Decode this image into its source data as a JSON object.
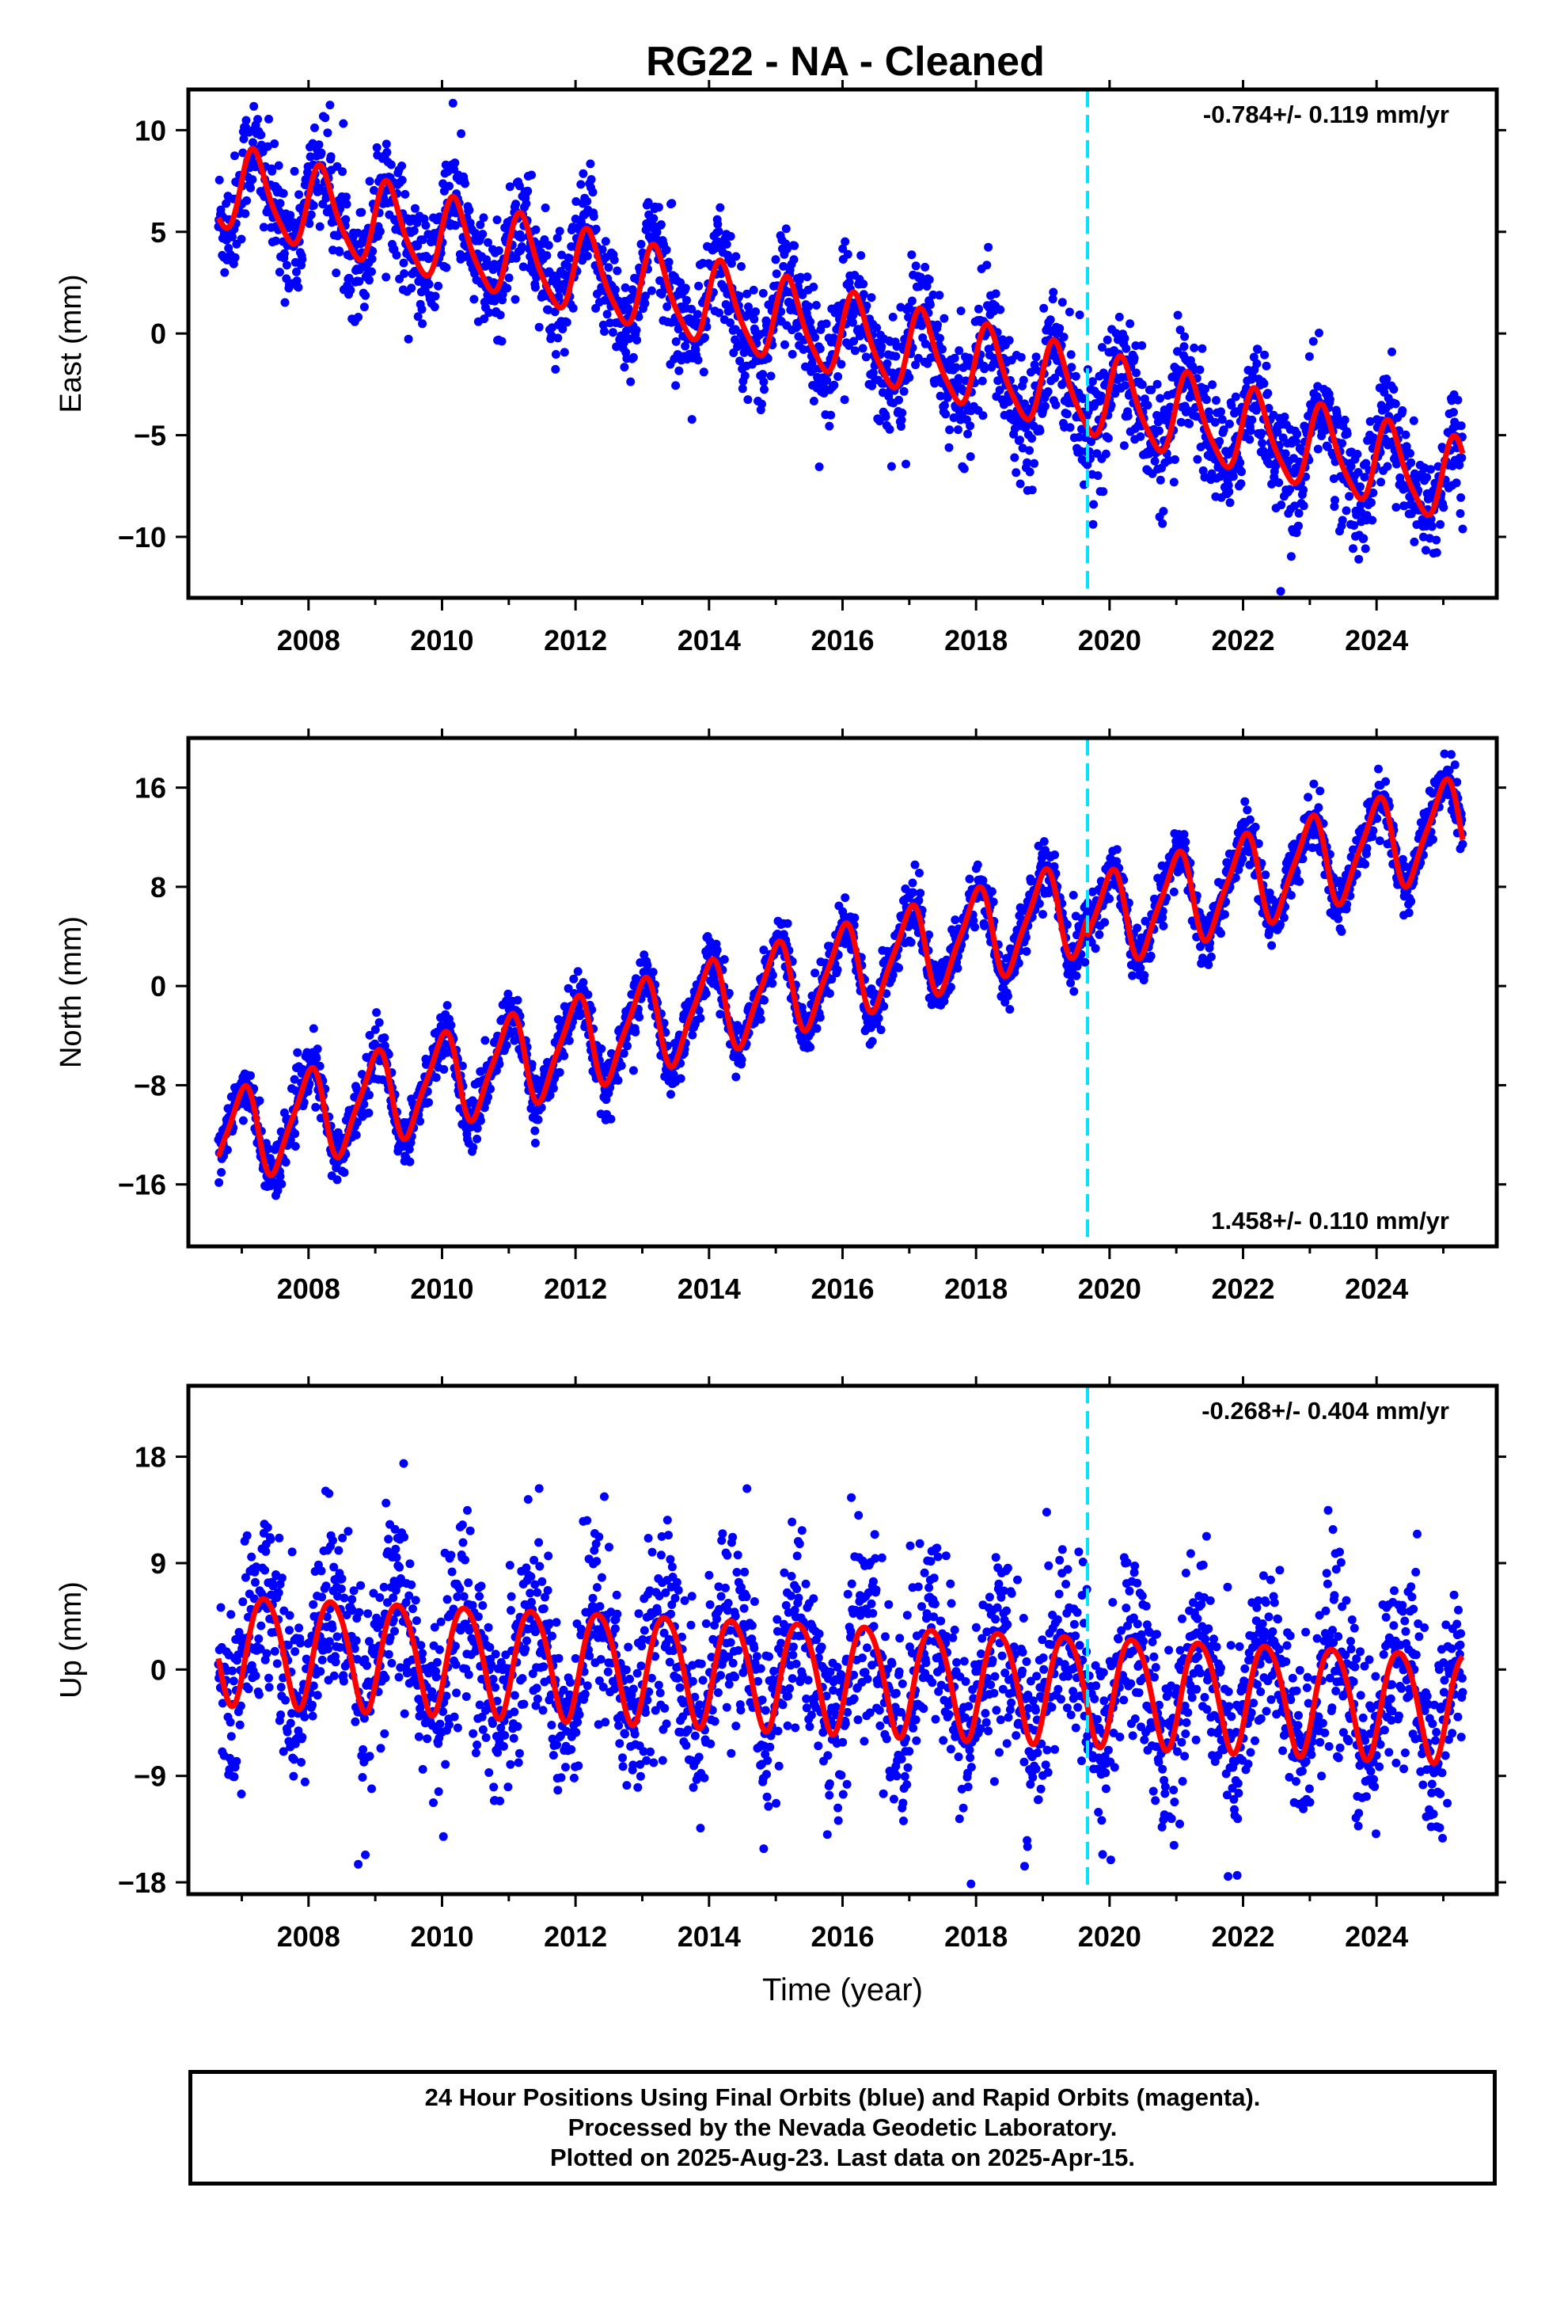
{
  "title": "RG22  - NA - Cleaned",
  "colors": {
    "data_points": "#0000ff",
    "model_fit": "#ff0000",
    "event_line": "#00e5ff",
    "frame": "#000000"
  },
  "chart_data": [
    {
      "type": "scatter",
      "ylabel": "East (mm)",
      "xlabel": "",
      "rate_label": "-0.784+/- 0.119 mm/yr",
      "xlim": [
        2006.2,
        2025.8
      ],
      "ylim": [
        -13,
        12
      ],
      "x_ticks": [
        2008,
        2010,
        2012,
        2014,
        2016,
        2018,
        2020,
        2022,
        2024
      ],
      "x_tick_labels": [
        "2008",
        "2010",
        "2012",
        "2014",
        "2016",
        "2018",
        "2020",
        "2022",
        "2024"
      ],
      "y_ticks": [
        -10,
        -5,
        0,
        5,
        10
      ],
      "y_tick_labels": [
        "−10",
        "−5",
        "0",
        "5",
        "10"
      ],
      "data_start": 2006.65,
      "data_end": 2025.29,
      "event_line_x": 2019.67,
      "model": {
        "intercept_at_start": 7.2,
        "rate": -0.784,
        "annual_amplitude": 2.0,
        "annual_phase": 0.3,
        "semiannual_amplitude": 0.4,
        "noise_sd": 1.4,
        "offset_at_event": 0.0
      }
    },
    {
      "type": "scatter",
      "ylabel": "North (mm)",
      "xlabel": "",
      "rate_label": "1.458+/- 0.110 mm/yr",
      "xlim": [
        2006.2,
        2025.8
      ],
      "ylim": [
        -21,
        20
      ],
      "x_ticks": [
        2008,
        2010,
        2012,
        2014,
        2016,
        2018,
        2020,
        2022,
        2024
      ],
      "x_tick_labels": [
        "2008",
        "2010",
        "2012",
        "2014",
        "2016",
        "2018",
        "2020",
        "2022",
        "2024"
      ],
      "y_ticks": [
        -16,
        -8,
        0,
        8,
        16
      ],
      "y_tick_labels": [
        "−16",
        "−8",
        "0",
        "8",
        "16"
      ],
      "data_start": 2006.65,
      "data_end": 2025.29,
      "event_line_x": 2019.67,
      "model": {
        "intercept_at_start": -12.5,
        "rate": 1.458,
        "annual_amplitude": 3.6,
        "annual_phase": 1.6,
        "semiannual_amplitude": 0.8,
        "noise_sd": 1.1,
        "offset_at_event": -1.5
      }
    },
    {
      "type": "scatter",
      "ylabel": "Up (mm)",
      "xlabel": "Time (year)",
      "rate_label": "-0.268+/- 0.404 mm/yr",
      "xlim": [
        2006.2,
        2025.8
      ],
      "ylim": [
        -19,
        24
      ],
      "x_ticks": [
        2008,
        2010,
        2012,
        2014,
        2016,
        2018,
        2020,
        2022,
        2024
      ],
      "x_tick_labels": [
        "2008",
        "2010",
        "2012",
        "2014",
        "2016",
        "2018",
        "2020",
        "2022",
        "2024"
      ],
      "y_ticks": [
        -18,
        -9,
        0,
        9,
        18
      ],
      "y_tick_labels": [
        "−18",
        "−9",
        "0",
        "9",
        "18"
      ],
      "data_start": 2006.65,
      "data_end": 2025.29,
      "event_line_x": 2019.67,
      "model": {
        "intercept_at_start": 2.0,
        "rate": -0.268,
        "annual_amplitude": 4.6,
        "annual_phase": -0.6,
        "semiannual_amplitude": 0.5,
        "noise_sd": 4.0,
        "offset_at_event": 0.0
      }
    }
  ],
  "footer": {
    "line1": "24 Hour Positions Using Final Orbits (blue) and Rapid Orbits (magenta).",
    "line2": "Processed by the Nevada Geodetic Laboratory.",
    "line3": "Plotted on 2025-Aug-23. Last data on 2025-Apr-15."
  }
}
